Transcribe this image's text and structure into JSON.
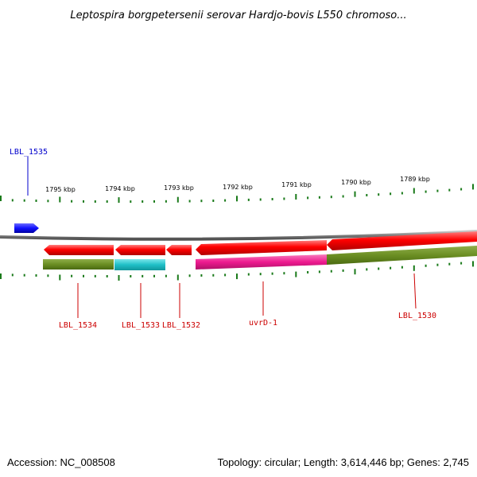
{
  "title": "Leptospira borgpetersenii serovar Hardjo-bovis L550 chromoso...",
  "footer": {
    "accession": "Accession: NC_008508",
    "summary": "Topology: circular; Length: 3,614,446 bp; Genes: 2,745"
  },
  "colors": {
    "backbone": "#808080",
    "tick": "#1a7a1a",
    "forward_gene": "#1a1aff",
    "reverse_gene": "#ff0000",
    "cog_olive": "#6b8e23",
    "cog_cyan": "#20c0c8",
    "cog_magenta": "#ee1a90",
    "forward_label": "#0000cc",
    "reverse_label": "#cc0000"
  },
  "kbp_labels": [
    "1795 kbp",
    "1794 kbp",
    "1793 kbp",
    "1792 kbp",
    "1791 kbp",
    "1790 kbp",
    "1789 kbp"
  ],
  "forward_genes": [
    {
      "label": "LBL_1535"
    }
  ],
  "reverse_genes": [
    {
      "label": "LBL_1534"
    },
    {
      "label": "LBL_1533"
    },
    {
      "label": "LBL_1532"
    },
    {
      "label": "uvrD-1"
    },
    {
      "label": "LBL_1530"
    }
  ]
}
